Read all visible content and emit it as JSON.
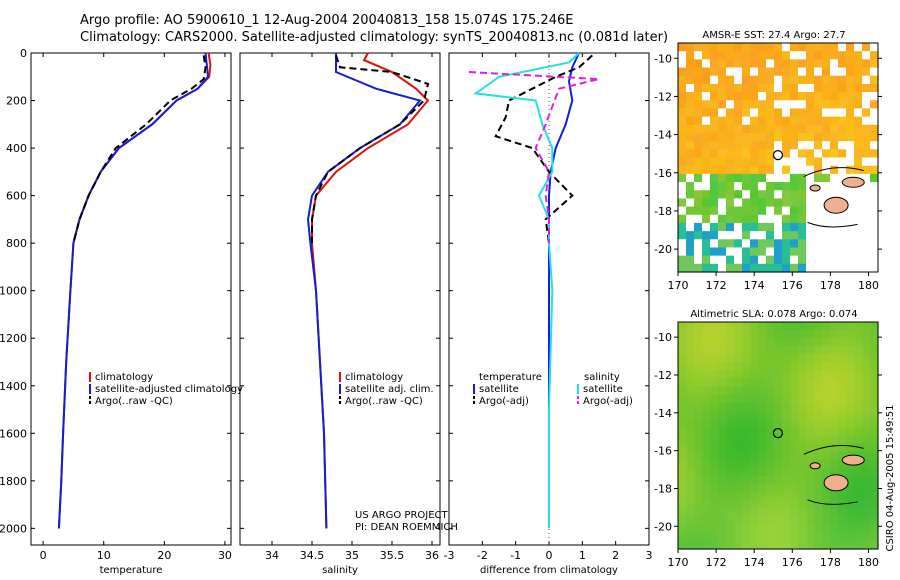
{
  "titles": {
    "line1": "Argo profile: AO 5900610_1 12-Aug-2004 20040813_158 15.074S 175.246E",
    "line2": "Climatology: CARS2000. Satellite-adjusted climatology: synTS_20040813.nc (0.081d later)"
  },
  "side_label": "CSIRO 04-Aug-2005 15:49:51",
  "colors": {
    "red": "#e01010",
    "blue": "#1020d0",
    "black": "#000000",
    "cyan": "#20e0e8",
    "magenta": "#e020e0"
  },
  "chart_data": [
    {
      "type": "line",
      "name": "temperature-panel",
      "xlabel": "temperature",
      "xlim": [
        -2,
        31
      ],
      "ylim": [
        2070,
        0
      ],
      "xticks": [
        0,
        10,
        20,
        30
      ],
      "yticks": [
        0,
        200,
        400,
        600,
        800,
        1000,
        1200,
        1400,
        1600,
        1800,
        2000
      ],
      "legend": [
        "climatology",
        "satellite-adjusted climatology",
        "Argo(..raw -QC)"
      ],
      "series": [
        {
          "key": "climatology",
          "color": "red",
          "dash": false,
          "points": [
            [
              27.3,
              0
            ],
            [
              27.6,
              50
            ],
            [
              27.4,
              100
            ],
            [
              25.5,
              150
            ],
            [
              22,
              200
            ],
            [
              18,
              300
            ],
            [
              12.5,
              400
            ],
            [
              9.5,
              500
            ],
            [
              7.5,
              600
            ],
            [
              6,
              700
            ],
            [
              5,
              800
            ],
            [
              4.5,
              1000
            ],
            [
              3.8,
              1300
            ],
            [
              3.3,
              1600
            ],
            [
              3,
              1800
            ],
            [
              2.6,
              2000
            ]
          ]
        },
        {
          "key": "satellite",
          "color": "blue",
          "dash": false,
          "points": [
            [
              26.8,
              0
            ],
            [
              27,
              50
            ],
            [
              27.2,
              100
            ],
            [
              25.5,
              150
            ],
            [
              22,
              200
            ],
            [
              18,
              300
            ],
            [
              12.5,
              400
            ],
            [
              9.5,
              500
            ],
            [
              7.5,
              600
            ],
            [
              6,
              700
            ],
            [
              5,
              800
            ],
            [
              4.5,
              1000
            ],
            [
              3.8,
              1300
            ],
            [
              3.3,
              1600
            ],
            [
              3,
              1800
            ],
            [
              2.6,
              2000
            ]
          ]
        },
        {
          "key": "argo",
          "color": "black",
          "dash": true,
          "points": [
            [
              26.5,
              10
            ],
            [
              26.8,
              60
            ],
            [
              26.5,
              110
            ],
            [
              24.5,
              150
            ],
            [
              21,
              200
            ],
            [
              17,
              300
            ],
            [
              12,
              400
            ],
            [
              9.5,
              500
            ],
            [
              7.5,
              600
            ],
            [
              6,
              700
            ],
            [
              5,
              800
            ]
          ]
        }
      ]
    },
    {
      "type": "line",
      "name": "salinity-panel",
      "xlabel": "salinity",
      "xlim": [
        33.6,
        36.1
      ],
      "ylim": [
        2070,
        0
      ],
      "xticks": [
        34,
        34.5,
        35,
        35.5,
        36
      ],
      "legend": [
        "climatology",
        "satellite adj. clim.",
        "Argo(..raw -QC)"
      ],
      "notes": [
        "US ARGO PROJECT",
        "PI: DEAN ROEMMICH"
      ],
      "series": [
        {
          "key": "climatology",
          "color": "red",
          "dash": false,
          "points": [
            [
              35.2,
              0
            ],
            [
              35.15,
              30
            ],
            [
              35.5,
              80
            ],
            [
              35.8,
              150
            ],
            [
              35.95,
              200
            ],
            [
              35.7,
              300
            ],
            [
              35.2,
              400
            ],
            [
              34.8,
              500
            ],
            [
              34.55,
              600
            ],
            [
              34.5,
              700
            ],
            [
              34.5,
              800
            ],
            [
              34.55,
              1000
            ],
            [
              34.6,
              1300
            ],
            [
              34.65,
              1600
            ],
            [
              34.68,
              2000
            ]
          ]
        },
        {
          "key": "satellite",
          "color": "blue",
          "dash": false,
          "points": [
            [
              34.8,
              0
            ],
            [
              34.8,
              80
            ],
            [
              35.3,
              150
            ],
            [
              35.85,
              200
            ],
            [
              35.6,
              300
            ],
            [
              35.1,
              400
            ],
            [
              34.7,
              500
            ],
            [
              34.5,
              600
            ],
            [
              34.45,
              700
            ],
            [
              34.48,
              800
            ],
            [
              34.55,
              1000
            ],
            [
              34.6,
              1300
            ],
            [
              34.65,
              1600
            ],
            [
              34.68,
              2000
            ]
          ]
        },
        {
          "key": "argo",
          "color": "black",
          "dash": true,
          "points": [
            [
              34.8,
              10
            ],
            [
              34.85,
              60
            ],
            [
              35.5,
              80
            ],
            [
              35.95,
              130
            ],
            [
              35.9,
              200
            ],
            [
              35.6,
              300
            ],
            [
              35.1,
              400
            ],
            [
              34.7,
              500
            ],
            [
              34.55,
              600
            ],
            [
              34.5,
              700
            ],
            [
              34.5,
              800
            ]
          ]
        }
      ]
    },
    {
      "type": "line",
      "name": "difference-panel",
      "xlabel": "difference from climatology",
      "xlim": [
        -3,
        3
      ],
      "ylim": [
        2070,
        0
      ],
      "xticks": [
        -3,
        -2,
        -1,
        0,
        1,
        2,
        3
      ],
      "legend": [
        "temperature",
        "satellite",
        "Argo(-adj)",
        "salinity",
        "satellite",
        "Argo(-adj)"
      ],
      "series": [
        {
          "key": "temperature-satellite",
          "color": "blue",
          "dash": false,
          "points": [
            [
              0.9,
              0
            ],
            [
              0.7,
              60
            ],
            [
              0.6,
              120
            ],
            [
              0.7,
              200
            ],
            [
              0.5,
              300
            ],
            [
              0.2,
              400
            ],
            [
              0.05,
              500
            ],
            [
              0,
              600
            ],
            [
              0,
              700
            ],
            [
              0,
              1000
            ],
            [
              0,
              1500
            ],
            [
              0,
              1900
            ]
          ]
        },
        {
          "key": "temperature-argo",
          "color": "black",
          "dash": true,
          "points": [
            [
              1.3,
              10
            ],
            [
              0.9,
              60
            ],
            [
              0.2,
              100
            ],
            [
              -0.5,
              150
            ],
            [
              -1.2,
              200
            ],
            [
              -1.3,
              270
            ],
            [
              -1.6,
              350
            ],
            [
              -0.5,
              400
            ],
            [
              0,
              500
            ],
            [
              0.7,
              600
            ],
            [
              -0.1,
              700
            ],
            [
              0,
              800
            ]
          ]
        },
        {
          "key": "salinity-satellite",
          "color": "cyan",
          "dash": false,
          "points": [
            [
              0.9,
              0
            ],
            [
              0.6,
              40
            ],
            [
              -1.5,
              100
            ],
            [
              -2.2,
              170
            ],
            [
              -0.4,
              200
            ],
            [
              -0.2,
              300
            ],
            [
              0.1,
              400
            ],
            [
              0.1,
              500
            ],
            [
              -0.3,
              600
            ],
            [
              0,
              700
            ],
            [
              0,
              800
            ],
            [
              0.1,
              1000
            ],
            [
              0,
              1500
            ],
            [
              0,
              2000
            ]
          ]
        },
        {
          "key": "salinity-argo",
          "color": "magenta",
          "dash": true,
          "points": [
            [
              -2.4,
              80
            ],
            [
              -1.1,
              90
            ],
            [
              1.5,
              110
            ],
            [
              0.3,
              150
            ],
            [
              -0.1,
              300
            ],
            [
              -0.4,
              400
            ],
            [
              0,
              500
            ],
            [
              -0.1,
              600
            ],
            [
              0,
              700
            ],
            [
              0,
              800
            ]
          ]
        }
      ]
    },
    {
      "type": "heatmap",
      "name": "sst-map",
      "title": "AMSR-E SST: 27.4 Argo: 27.7",
      "xlim": [
        170,
        180.5
      ],
      "ylim": [
        -21.2,
        -9.2
      ],
      "xticks": [
        170,
        172,
        174,
        176,
        178,
        180
      ],
      "yticks": [
        -10,
        -12,
        -14,
        -16,
        -18,
        -20
      ],
      "float_position": [
        175.246,
        -15.074
      ]
    },
    {
      "type": "heatmap",
      "name": "sla-map",
      "title": "Altimetric SLA: 0.078 Argo: 0.074",
      "xlim": [
        170,
        180.5
      ],
      "ylim": [
        -21.2,
        -9.2
      ],
      "xticks": [
        170,
        172,
        174,
        176,
        178,
        180
      ],
      "yticks": [
        -10,
        -12,
        -14,
        -16,
        -18,
        -20
      ],
      "float_position": [
        175.246,
        -15.074
      ]
    }
  ]
}
